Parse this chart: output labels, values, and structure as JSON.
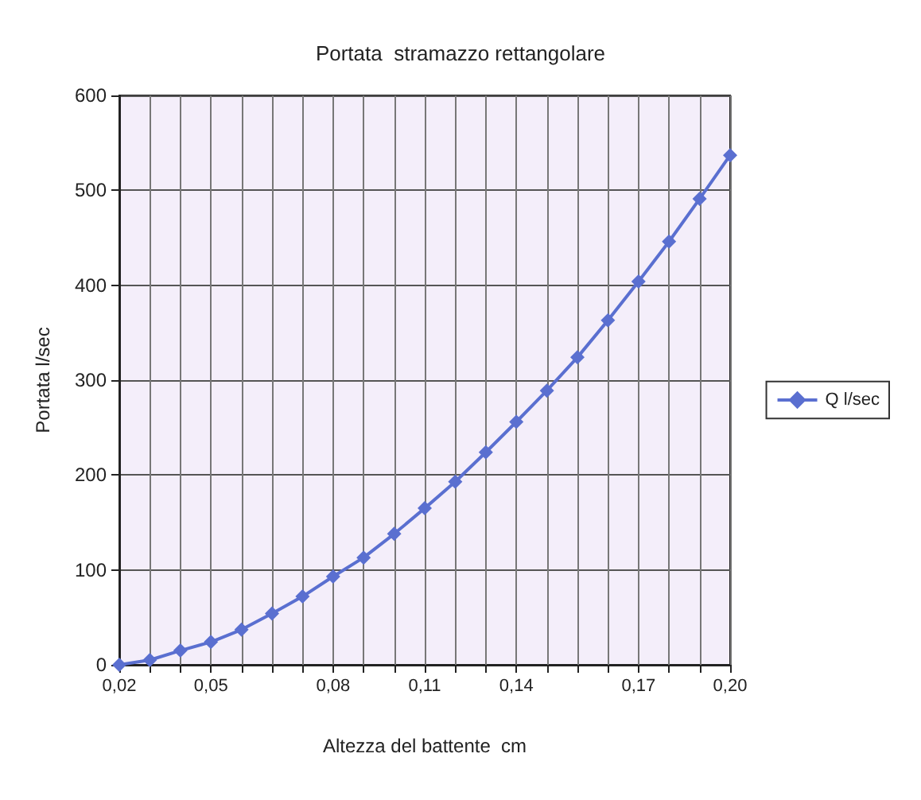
{
  "chart_data": {
    "type": "line",
    "title": "Portata  stramazzo rettangolare",
    "xlabel": "Altezza del battente  cm",
    "ylabel": "Portata l/sec",
    "categories": [
      "0,02",
      null,
      null,
      "0,05",
      null,
      null,
      null,
      "0,08",
      null,
      null,
      "0,11",
      null,
      null,
      "0,14",
      null,
      null,
      null,
      "0,17",
      null,
      null,
      "0,20"
    ],
    "series": [
      {
        "name": "Q l/sec",
        "color": "#5a6fd0",
        "values": [
          0,
          5,
          15,
          24,
          37,
          54,
          72,
          93,
          113,
          138,
          165,
          193,
          224,
          256,
          289,
          324,
          363,
          404,
          446,
          491,
          537
        ]
      }
    ],
    "ylim": [
      0,
      600
    ],
    "yticks": [
      0,
      100,
      200,
      300,
      400,
      500,
      600
    ],
    "grid": true,
    "legend": "right",
    "marker": "diamond"
  }
}
